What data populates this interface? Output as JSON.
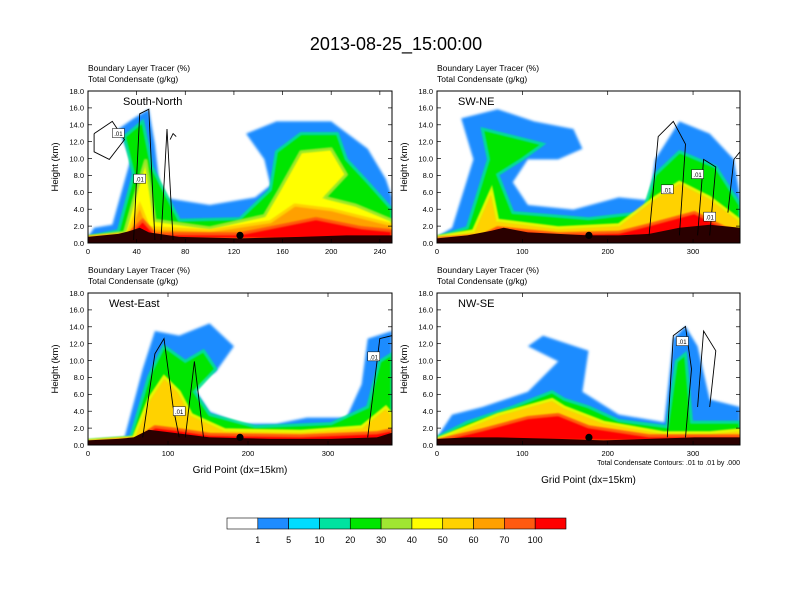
{
  "figure": {
    "title": "2013-08-25_15:00:00"
  },
  "chart_data": [
    {
      "type": "heatmap",
      "panel": "top-left",
      "label": "South-North",
      "title_left_line1": "Boundary Layer Tracer   (%)",
      "title_left_line2": "Total Condensate   (g/kg)",
      "ylabel": "Height (km)",
      "xlabel": "",
      "xlim": [
        0,
        250
      ],
      "ylim": [
        0,
        18
      ],
      "xticks": [
        "0",
        "40",
        "80",
        "120",
        "160",
        "200",
        "240"
      ],
      "yticks": [
        "0.0",
        "2.0",
        "4.0",
        "6.0",
        "8.0",
        "10.0",
        "12.0",
        "14.0",
        "16.0",
        "18.0"
      ],
      "contour_labels": [
        ".01",
        ".01"
      ],
      "marker_x": 125
    },
    {
      "type": "heatmap",
      "panel": "top-right",
      "label": "SW-NE",
      "title_left_line1": "Boundary Layer Tracer   (%)",
      "title_left_line2": "Total Condensate   (g/kg)",
      "ylabel": "Height (km)",
      "xlabel": "",
      "xlim": [
        0,
        355
      ],
      "ylim": [
        0,
        18
      ],
      "xticks": [
        "0",
        "100",
        "200",
        "300"
      ],
      "yticks": [
        "0.0",
        "2.0",
        "4.0",
        "6.0",
        "8.0",
        "10.0",
        "12.0",
        "14.0",
        "16.0",
        "18.0"
      ],
      "contour_labels": [
        ".01",
        ".01",
        ".01"
      ],
      "marker_x": 178
    },
    {
      "type": "heatmap",
      "panel": "bottom-left",
      "label": "West-East",
      "title_left_line1": "Boundary Layer Tracer   (%)",
      "title_left_line2": "Total Condensate   (g/kg)",
      "ylabel": "Height (km)",
      "xlabel": "Grid Point (dx=15km)",
      "xlim": [
        0,
        380
      ],
      "ylim": [
        0,
        18
      ],
      "xticks": [
        "0",
        "100",
        "200",
        "300"
      ],
      "yticks": [
        "0.0",
        "2.0",
        "4.0",
        "6.0",
        "8.0",
        "10.0",
        "12.0",
        "14.0",
        "16.0",
        "18.0"
      ],
      "contour_labels": [
        ".01",
        ".01"
      ],
      "marker_x": 190
    },
    {
      "type": "heatmap",
      "panel": "bottom-right",
      "label": "NW-SE",
      "title_left_line1": "Boundary Layer Tracer   (%)",
      "title_left_line2": "Total Condensate   (g/kg)",
      "ylabel": "Height (km)",
      "xlabel": "Grid Point (dx=15km)",
      "xlim": [
        0,
        355
      ],
      "ylim": [
        0,
        18
      ],
      "xticks": [
        "0",
        "100",
        "200",
        "300"
      ],
      "yticks": [
        "0.0",
        "2.0",
        "4.0",
        "6.0",
        "8.0",
        "10.0",
        "12.0",
        "14.0",
        "16.0",
        "18.0"
      ],
      "contour_labels": [
        ".01"
      ],
      "contour_note": "Total Condensate Contours: .01 to .01 by .000",
      "marker_x": 178
    }
  ],
  "colorbar": {
    "colors": [
      "#ffffff",
      "#1e8cff",
      "#00dcff",
      "#00e3a0",
      "#00e600",
      "#a0e632",
      "#ffff00",
      "#ffd200",
      "#ffa000",
      "#ff5a10",
      "#ff0000"
    ],
    "labels": [
      "1",
      "5",
      "10",
      "20",
      "30",
      "40",
      "50",
      "60",
      "70",
      "100"
    ]
  }
}
